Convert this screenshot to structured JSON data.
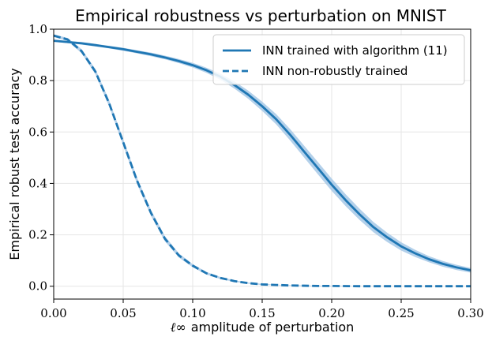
{
  "chart_data": {
    "type": "line",
    "title": "Empirical robustness vs perturbation on MNIST",
    "xlabel_symbol": "ℓ∞",
    "xlabel_text": "amplitude of perturbation",
    "ylabel": "Empirical robust test accuracy",
    "xlim": [
      0.0,
      0.3
    ],
    "ylim": [
      -0.05,
      1.0
    ],
    "grid": true,
    "legend_position": "top-right",
    "x_ticks": [
      0.0,
      0.05,
      0.1,
      0.15,
      0.2,
      0.25,
      0.3
    ],
    "x_tick_labels": [
      "0.00",
      "0.05",
      "0.10",
      "0.15",
      "0.20",
      "0.25",
      "0.30"
    ],
    "y_ticks": [
      0.0,
      0.2,
      0.4,
      0.6,
      0.8,
      1.0
    ],
    "y_tick_labels": [
      "0.0",
      "0.2",
      "0.4",
      "0.6",
      "0.8",
      "1.0"
    ],
    "colors": {
      "line": "#1f77b4",
      "band": "#a6c8e6"
    },
    "series": [
      {
        "name": "INN trained with algorithm (11)",
        "style": "solid",
        "x": [
          0.0,
          0.01,
          0.02,
          0.03,
          0.04,
          0.05,
          0.06,
          0.07,
          0.08,
          0.09,
          0.1,
          0.11,
          0.12,
          0.13,
          0.14,
          0.15,
          0.16,
          0.17,
          0.18,
          0.19,
          0.2,
          0.21,
          0.22,
          0.23,
          0.24,
          0.25,
          0.26,
          0.27,
          0.28,
          0.29,
          0.3
        ],
        "values": [
          0.955,
          0.95,
          0.945,
          0.938,
          0.93,
          0.922,
          0.912,
          0.902,
          0.89,
          0.876,
          0.86,
          0.84,
          0.815,
          0.783,
          0.745,
          0.7,
          0.65,
          0.59,
          0.525,
          0.46,
          0.395,
          0.335,
          0.28,
          0.23,
          0.19,
          0.155,
          0.128,
          0.105,
          0.087,
          0.073,
          0.062
        ],
        "band": [
          0.004,
          0.004,
          0.005,
          0.005,
          0.005,
          0.006,
          0.006,
          0.007,
          0.007,
          0.008,
          0.009,
          0.01,
          0.012,
          0.014,
          0.016,
          0.018,
          0.02,
          0.022,
          0.023,
          0.024,
          0.024,
          0.023,
          0.022,
          0.02,
          0.018,
          0.016,
          0.014,
          0.012,
          0.011,
          0.01,
          0.009
        ]
      },
      {
        "name": "INN non-robustly trained",
        "style": "dashed",
        "x": [
          0.0,
          0.01,
          0.02,
          0.03,
          0.04,
          0.05,
          0.06,
          0.07,
          0.08,
          0.09,
          0.1,
          0.11,
          0.12,
          0.13,
          0.14,
          0.15,
          0.16,
          0.17,
          0.18,
          0.19,
          0.2,
          0.22,
          0.24,
          0.26,
          0.28,
          0.3
        ],
        "values": [
          0.975,
          0.96,
          0.915,
          0.835,
          0.71,
          0.56,
          0.41,
          0.285,
          0.185,
          0.12,
          0.08,
          0.05,
          0.032,
          0.02,
          0.012,
          0.007,
          0.005,
          0.003,
          0.002,
          0.001,
          0.001,
          0.0,
          0.0,
          0.0,
          0.0,
          0.0
        ],
        "band": [
          0.005,
          0.006,
          0.008,
          0.01,
          0.012,
          0.012,
          0.012,
          0.011,
          0.01,
          0.008,
          0.006,
          0.005,
          0.004,
          0.003,
          0.002,
          0.002,
          0.001,
          0.001,
          0.001,
          0.001,
          0.001,
          0.0,
          0.0,
          0.0,
          0.0,
          0.0
        ]
      }
    ]
  }
}
